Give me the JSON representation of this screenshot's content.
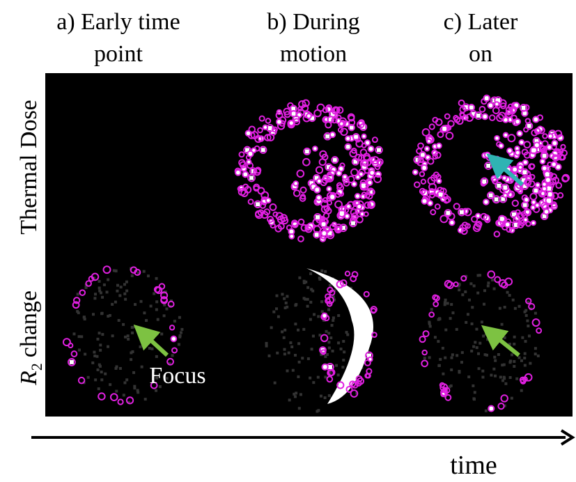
{
  "columns": [
    {
      "lines": [
        "a) Early time",
        "point"
      ]
    },
    {
      "lines": [
        "b) During",
        "motion"
      ]
    },
    {
      "lines": [
        "c) Later",
        "on"
      ]
    }
  ],
  "rows": [
    {
      "label": "Thermal Dose"
    },
    {
      "symbol": "R",
      "subscript": "2",
      "label": "change"
    }
  ],
  "annotation": "Focus",
  "axis_label": "time"
}
